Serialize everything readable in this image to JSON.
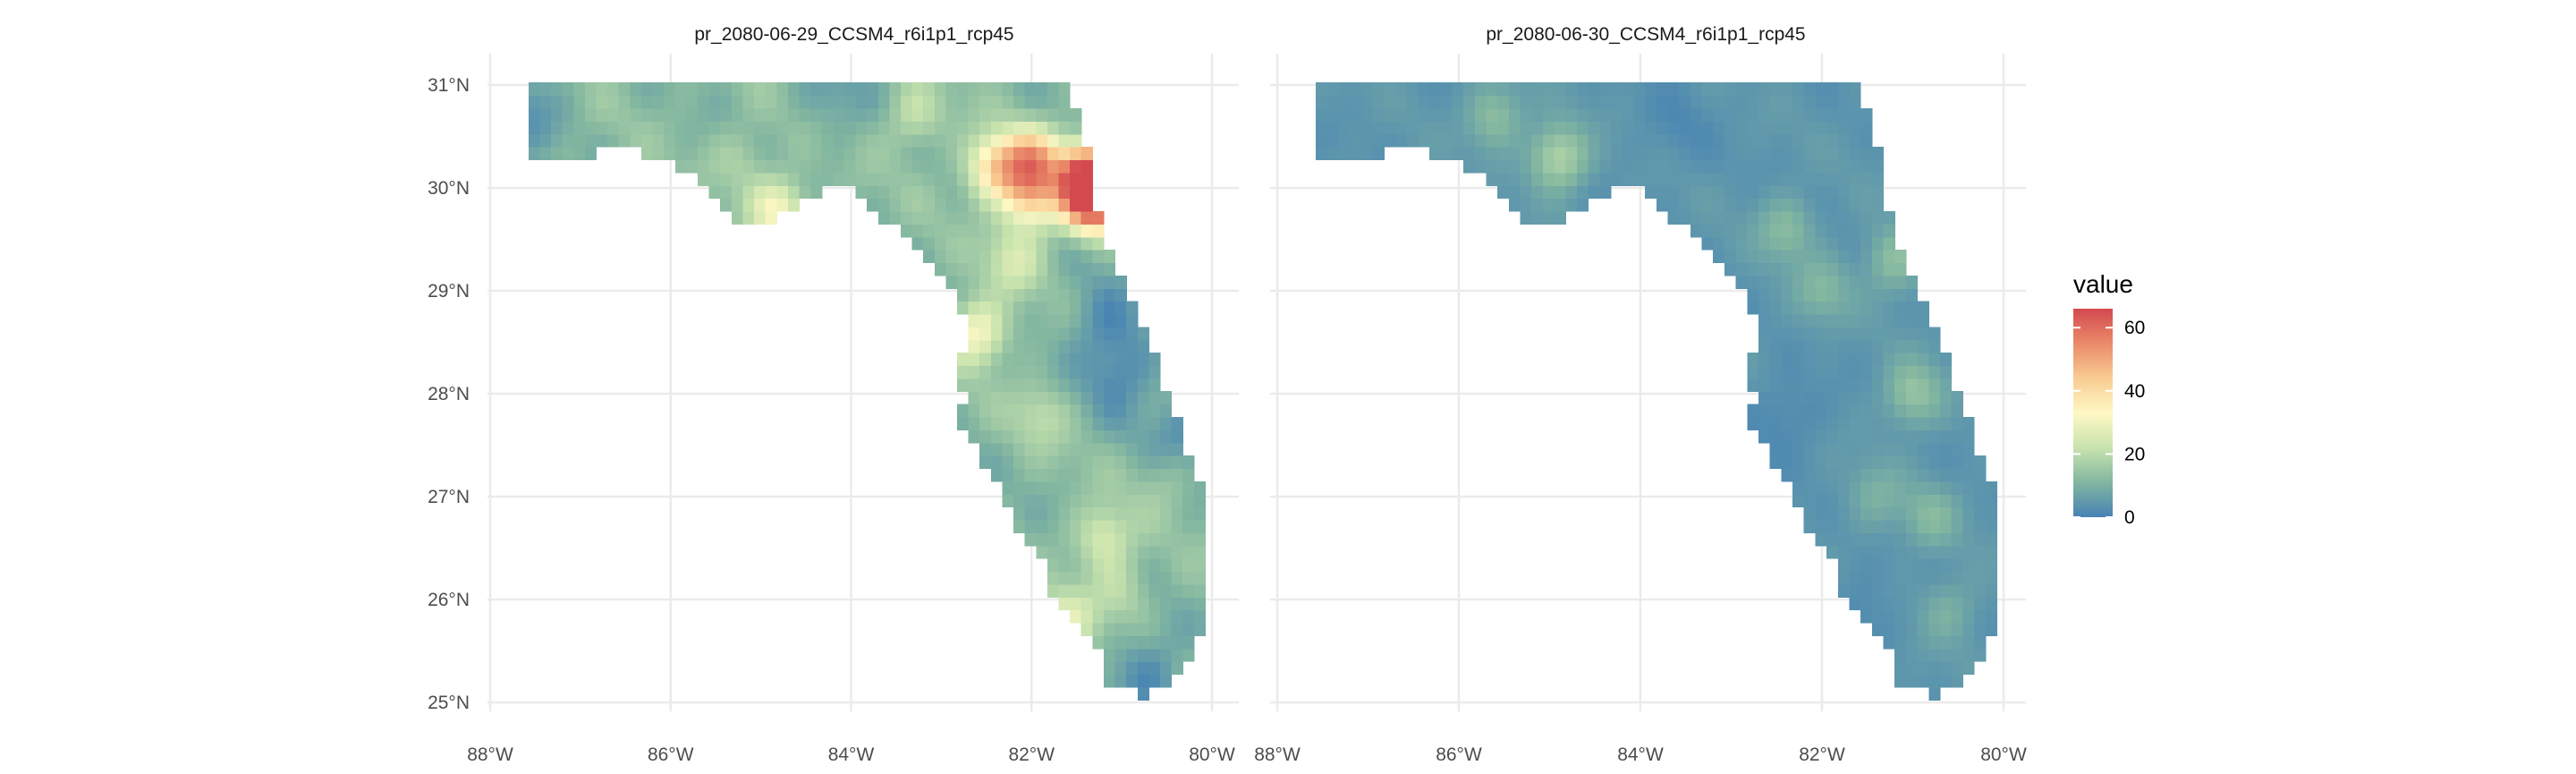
{
  "chart_data": [
    {
      "type": "heatmap",
      "subtype": "raster-map",
      "title": "pr_2080-06-29_CCSM4_r6i1p1_rcp45",
      "region": "Florida",
      "xlim": [
        -88,
        -80
      ],
      "ylim": [
        25,
        31
      ],
      "x_ticks": [
        "88°W",
        "86°W",
        "84°W",
        "82°W",
        "80°W"
      ],
      "y_ticks": [
        "25°N",
        "26°N",
        "27°N",
        "28°N",
        "29°N",
        "30°N",
        "31°N"
      ],
      "value_range_estimate": [
        0,
        65
      ],
      "hotspots": [
        {
          "lon": -81.4,
          "lat": 30.1,
          "value": 60
        },
        {
          "lon": -81.3,
          "lat": 29.9,
          "value": 62
        },
        {
          "lon": -82.0,
          "lat": 30.25,
          "value": 45
        },
        {
          "lon": -82.4,
          "lat": 30.2,
          "value": 36
        },
        {
          "lon": -82.0,
          "lat": 29.9,
          "value": 34
        },
        {
          "lon": -84.8,
          "lat": 29.8,
          "value": 28
        },
        {
          "lon": -85.2,
          "lat": 30.3,
          "value": 16
        },
        {
          "lon": -83.3,
          "lat": 30.7,
          "value": 20
        },
        {
          "lon": -82.6,
          "lat": 28.6,
          "value": 30
        },
        {
          "lon": -82.2,
          "lat": 29.3,
          "value": 22
        },
        {
          "lon": -81.9,
          "lat": 27.8,
          "value": 18
        },
        {
          "lon": -81.2,
          "lat": 26.6,
          "value": 24
        },
        {
          "lon": -81.0,
          "lat": 26.1,
          "value": 18
        },
        {
          "lon": -81.6,
          "lat": 25.8,
          "value": 24
        },
        {
          "lon": -80.5,
          "lat": 27.2,
          "value": 16
        }
      ],
      "cold_spots": [
        {
          "lon": -81.0,
          "lat": 28.2,
          "value": 2
        },
        {
          "lon": -81.2,
          "lat": 28.7,
          "value": 3
        },
        {
          "lon": -80.3,
          "lat": 27.6,
          "value": 3
        },
        {
          "lon": -80.7,
          "lat": 25.3,
          "value": 2
        },
        {
          "lon": -87.6,
          "lat": 30.8,
          "value": 4
        },
        {
          "lon": -84.2,
          "lat": 30.9,
          "value": 6
        }
      ],
      "base_value": 11
    },
    {
      "type": "heatmap",
      "subtype": "raster-map",
      "title": "pr_2080-06-30_CCSM4_r6i1p1_rcp45",
      "region": "Florida",
      "xlim": [
        -88,
        -80
      ],
      "ylim": [
        25,
        31
      ],
      "x_ticks": [
        "88°W",
        "86°W",
        "84°W",
        "82°W",
        "80°W"
      ],
      "y_ticks": [
        "25°N",
        "26°N",
        "27°N",
        "28°N",
        "29°N",
        "30°N",
        "31°N"
      ],
      "value_range_estimate": [
        0,
        20
      ],
      "hotspots": [
        {
          "lon": -84.9,
          "lat": 30.3,
          "value": 17
        },
        {
          "lon": -85.6,
          "lat": 30.7,
          "value": 12
        },
        {
          "lon": -82.4,
          "lat": 29.6,
          "value": 11
        },
        {
          "lon": -81.2,
          "lat": 29.3,
          "value": 12
        },
        {
          "lon": -81.0,
          "lat": 28.0,
          "value": 13
        },
        {
          "lon": -82.0,
          "lat": 29.0,
          "value": 10
        },
        {
          "lon": -81.4,
          "lat": 27.0,
          "value": 9
        },
        {
          "lon": -80.8,
          "lat": 26.8,
          "value": 10
        },
        {
          "lon": -80.6,
          "lat": 25.9,
          "value": 9
        }
      ],
      "cold_spots": [
        {
          "lon": -82.4,
          "lat": 27.8,
          "value": 1
        },
        {
          "lon": -81.6,
          "lat": 25.8,
          "value": 1
        },
        {
          "lon": -83.6,
          "lat": 30.6,
          "value": 2
        }
      ],
      "base_value": 4
    }
  ],
  "legend": {
    "title": "value",
    "breaks": [
      "0",
      "20",
      "40",
      "60"
    ],
    "min": 0,
    "max": 66,
    "colors": [
      "#4682b4",
      "#82b6a0",
      "#c8e3ad",
      "#fff8c4",
      "#f9cc92",
      "#ea8a68",
      "#d3494e"
    ]
  }
}
